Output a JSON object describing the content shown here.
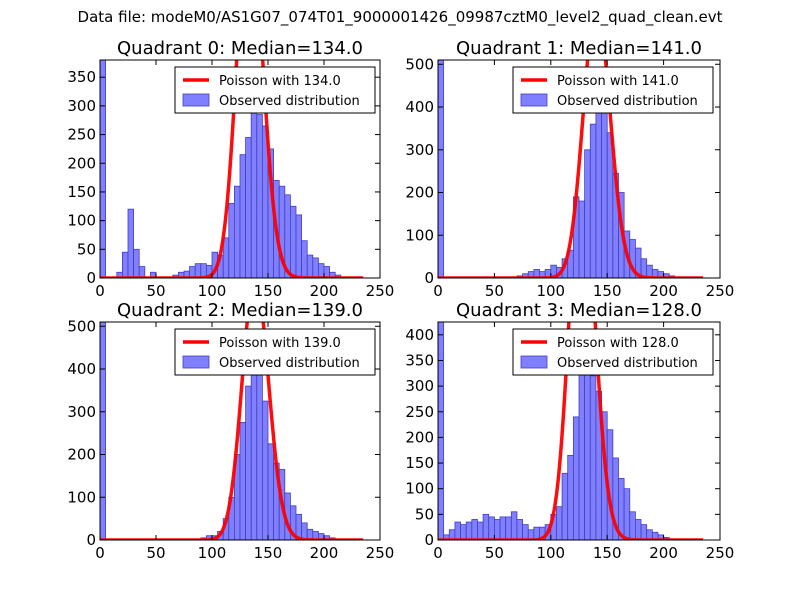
{
  "figure": {
    "title": "Data file: modeM0/AS1G07_074T01_9000001426_09987cztM0_level2_quad_clean.evt"
  },
  "chart_data": [
    {
      "type": "bar",
      "title": "Quadrant 0: Median=134.0",
      "median": 134.0,
      "xlim": [
        0,
        250
      ],
      "ylim": [
        0,
        380
      ],
      "xticks": [
        0,
        50,
        100,
        150,
        200,
        250
      ],
      "yticks": [
        0,
        50,
        100,
        150,
        200,
        250,
        300,
        350
      ],
      "bin_width": 5,
      "bins": [
        [
          0,
          380
        ],
        [
          15,
          10
        ],
        [
          20,
          45
        ],
        [
          25,
          120
        ],
        [
          30,
          50
        ],
        [
          35,
          20
        ],
        [
          45,
          10
        ],
        [
          65,
          5
        ],
        [
          70,
          10
        ],
        [
          75,
          12
        ],
        [
          80,
          20
        ],
        [
          85,
          25
        ],
        [
          90,
          25
        ],
        [
          95,
          22
        ],
        [
          100,
          45
        ],
        [
          105,
          40
        ],
        [
          110,
          70
        ],
        [
          115,
          130
        ],
        [
          120,
          160
        ],
        [
          125,
          215
        ],
        [
          130,
          245
        ],
        [
          135,
          300
        ],
        [
          140,
          285
        ],
        [
          145,
          265
        ],
        [
          150,
          225
        ],
        [
          155,
          170
        ],
        [
          160,
          160
        ],
        [
          165,
          145
        ],
        [
          170,
          125
        ],
        [
          175,
          110
        ],
        [
          180,
          65
        ],
        [
          185,
          40
        ],
        [
          190,
          35
        ],
        [
          195,
          25
        ],
        [
          200,
          20
        ],
        [
          205,
          10
        ],
        [
          210,
          5
        ]
      ],
      "curve_label": "Poisson with 134.0",
      "hist_label": "Observed distribution",
      "curve_color": "#ff0000",
      "hist_color": "#7f7fff"
    },
    {
      "type": "bar",
      "title": "Quadrant 1: Median=141.0",
      "median": 141.0,
      "xlim": [
        0,
        250
      ],
      "ylim": [
        0,
        510
      ],
      "xticks": [
        0,
        50,
        100,
        150,
        200,
        250
      ],
      "yticks": [
        0,
        100,
        200,
        300,
        400,
        500
      ],
      "bin_width": 5,
      "bins": [
        [
          0,
          510
        ],
        [
          70,
          5
        ],
        [
          75,
          10
        ],
        [
          80,
          15
        ],
        [
          85,
          20
        ],
        [
          90,
          15
        ],
        [
          95,
          20
        ],
        [
          100,
          30
        ],
        [
          105,
          25
        ],
        [
          110,
          45
        ],
        [
          115,
          65
        ],
        [
          120,
          190
        ],
        [
          125,
          180
        ],
        [
          130,
          300
        ],
        [
          135,
          360
        ],
        [
          140,
          440
        ],
        [
          145,
          390
        ],
        [
          150,
          340
        ],
        [
          155,
          245
        ],
        [
          160,
          200
        ],
        [
          165,
          110
        ],
        [
          170,
          90
        ],
        [
          175,
          70
        ],
        [
          180,
          45
        ],
        [
          185,
          30
        ],
        [
          190,
          20
        ],
        [
          195,
          15
        ],
        [
          200,
          10
        ],
        [
          205,
          5
        ]
      ],
      "curve_label": "Poisson with 141.0",
      "hist_label": "Observed distribution",
      "curve_color": "#ff0000",
      "hist_color": "#7f7fff"
    },
    {
      "type": "bar",
      "title": "Quadrant 2: Median=139.0",
      "median": 139.0,
      "xlim": [
        0,
        250
      ],
      "ylim": [
        0,
        510
      ],
      "xticks": [
        0,
        50,
        100,
        150,
        200,
        250
      ],
      "yticks": [
        0,
        100,
        200,
        300,
        400,
        500
      ],
      "bin_width": 5,
      "bins": [
        [
          0,
          510
        ],
        [
          90,
          5
        ],
        [
          95,
          10
        ],
        [
          100,
          10
        ],
        [
          105,
          20
        ],
        [
          110,
          50
        ],
        [
          115,
          100
        ],
        [
          120,
          200
        ],
        [
          125,
          275
        ],
        [
          130,
          360
        ],
        [
          135,
          420
        ],
        [
          140,
          400
        ],
        [
          145,
          325
        ],
        [
          150,
          225
        ],
        [
          155,
          180
        ],
        [
          160,
          165
        ],
        [
          165,
          110
        ],
        [
          170,
          80
        ],
        [
          175,
          60
        ],
        [
          180,
          40
        ],
        [
          185,
          25
        ],
        [
          190,
          20
        ],
        [
          195,
          15
        ],
        [
          200,
          10
        ],
        [
          205,
          5
        ]
      ],
      "curve_label": "Poisson with 139.0",
      "hist_label": "Observed distribution",
      "curve_color": "#ff0000",
      "hist_color": "#7f7fff"
    },
    {
      "type": "bar",
      "title": "Quadrant 3: Median=128.0",
      "median": 128.0,
      "xlim": [
        0,
        250
      ],
      "ylim": [
        0,
        425
      ],
      "xticks": [
        0,
        50,
        100,
        150,
        200,
        250
      ],
      "yticks": [
        0,
        50,
        100,
        150,
        200,
        250,
        300,
        350,
        400
      ],
      "bin_width": 5,
      "bins": [
        [
          0,
          425
        ],
        [
          5,
          10
        ],
        [
          10,
          20
        ],
        [
          15,
          35
        ],
        [
          20,
          30
        ],
        [
          25,
          35
        ],
        [
          30,
          40
        ],
        [
          35,
          35
        ],
        [
          40,
          50
        ],
        [
          45,
          45
        ],
        [
          50,
          40
        ],
        [
          55,
          45
        ],
        [
          60,
          45
        ],
        [
          65,
          55
        ],
        [
          70,
          40
        ],
        [
          75,
          30
        ],
        [
          80,
          20
        ],
        [
          85,
          25
        ],
        [
          90,
          25
        ],
        [
          95,
          30
        ],
        [
          100,
          50
        ],
        [
          105,
          65
        ],
        [
          110,
          130
        ],
        [
          115,
          165
        ],
        [
          120,
          240
        ],
        [
          125,
          340
        ],
        [
          130,
          390
        ],
        [
          135,
          320
        ],
        [
          140,
          290
        ],
        [
          145,
          250
        ],
        [
          150,
          215
        ],
        [
          155,
          160
        ],
        [
          160,
          120
        ],
        [
          165,
          100
        ],
        [
          170,
          55
        ],
        [
          175,
          40
        ],
        [
          180,
          30
        ],
        [
          185,
          20
        ],
        [
          190,
          15
        ],
        [
          195,
          10
        ],
        [
          200,
          5
        ]
      ],
      "curve_label": "Poisson with 128.0",
      "hist_label": "Observed distribution",
      "curve_color": "#ff0000",
      "hist_color": "#7f7fff"
    }
  ]
}
